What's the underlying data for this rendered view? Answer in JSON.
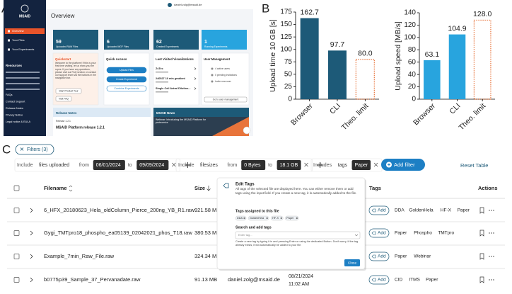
{
  "panel_labels": [
    "A",
    "B",
    "C"
  ],
  "dashboard": {
    "logo": "MSAID",
    "nav": [
      "Overview",
      "Your Files",
      "Your Experiments"
    ],
    "resources_title": "Resources",
    "resources": [
      "FAQs",
      "Contact Support",
      "Release Notes",
      "Privacy Notice",
      "Legal notice & EULA"
    ],
    "user": "daniel.zolg@msaid.de",
    "page_title": "Overview",
    "stats": [
      {
        "value": "59",
        "label": "Uploaded RAW Files"
      },
      {
        "value": "6",
        "label": "Uploaded MGF Files"
      },
      {
        "value": "62",
        "label": "Created Experiments"
      },
      {
        "value": "1",
        "label": "Running Experiments"
      }
    ],
    "quickstart": {
      "title": "Quickstart",
      "text": "Welcome to the platform! If this is your first time visiting, let us show you the ropes. If you have any questions, please visit our FAQ section or contact our support team via the buttons in the navigation bar.",
      "button": "Start Product Tour",
      "link": "Visit FAQ"
    },
    "quick_access": {
      "title": "Quick Access",
      "buttons": [
        "Upload Files",
        "Create Experiment",
        "Combine Experiments"
      ]
    },
    "last_visited": {
      "title": "Last Visited Visualizations",
      "items": [
        "ZsTec",
        "240527 10 min gradient",
        "Single Cell Astral Dilution..."
      ]
    },
    "user_management": {
      "title": "User Management",
      "items": [
        "4 active users",
        "0 pending invitations",
        "Invite new user"
      ],
      "link": "Go to user management"
    },
    "release_notes": {
      "title": "Release Notes",
      "version": "Release 1.2.1",
      "item": "MSAID Platform release 1.2.1"
    },
    "news": {
      "title": "MSAID News",
      "text": "Webinar: Introducing the MSAID Platform for proteomics"
    }
  },
  "chart_data": [
    {
      "type": "bar",
      "y_label": "Upload time 10 GB [s]",
      "categories": [
        "Browser",
        "CLI",
        "Theo. limit"
      ],
      "values": [
        162.7,
        97.7,
        80.0
      ],
      "value_labels": [
        "162.7",
        "97.7",
        "80.0"
      ],
      "colors": [
        "#1d5a78",
        "#1d5a78",
        "#e8743b"
      ],
      "dashed": [
        false,
        false,
        true
      ],
      "ylim": [
        0,
        175
      ],
      "yticks": [
        0,
        25,
        50,
        75,
        100,
        125,
        150,
        175
      ]
    },
    {
      "type": "bar",
      "y_label": "Upload speed [MB/s]",
      "categories": [
        "Browser",
        "CLI",
        "Theo. limit"
      ],
      "values": [
        63.1,
        104.9,
        128.0
      ],
      "value_labels": [
        "63.1",
        "104.9",
        "128.0"
      ],
      "colors": [
        "#28a4de",
        "#28a4de",
        "#e8743b"
      ],
      "dashed": [
        false,
        false,
        true
      ],
      "ylim": [
        0,
        140
      ],
      "yticks": [
        0,
        20,
        40,
        60,
        80,
        100,
        120,
        140
      ]
    }
  ],
  "table_ui": {
    "filter_chip": "Filters (3)",
    "filters": [
      [
        "Include",
        "files uploaded",
        "from",
        "06/01/2024",
        "to",
        "09/09/2024"
      ],
      [
        "Include",
        "filesizes",
        "from",
        "0 Bytes",
        "to",
        "18.1 GB"
      ],
      [
        "Includes",
        "tags",
        "Paper"
      ]
    ],
    "add_filter": "Add filter",
    "reset": "Reset Table",
    "columns": [
      "Filename",
      "Size",
      "Tags",
      "Actions"
    ],
    "add_tag": "Add",
    "rows": [
      {
        "filename": "6_HFX_20180623_Hela_oldColumn_Pierce_200ng_YB_R1.raw",
        "size": "921.58 MB",
        "tags": [
          "DDA",
          "GoldenHela",
          "HF-X",
          "Paper"
        ]
      },
      {
        "filename": "Gygi_TMTpro18_phospho_ea05139_02042021_phos_T18.raw",
        "size": "380.53 MB",
        "tags": [
          "Paper",
          "Phospho",
          "TMTpro"
        ]
      },
      {
        "filename": "Example_7min_Raw_File.raw",
        "size": "324.34 MB",
        "tags": [
          "Paper",
          "Webinar"
        ]
      },
      {
        "filename": "b0775p39_Sample_37_Pervanadate.raw",
        "size": "91.13 MB",
        "owner": "daniel.zolg@msaid.de",
        "date": "08/21/2024",
        "time": "11:02 AM",
        "tags": [
          "CID",
          "ITMS",
          "Paper"
        ]
      }
    ],
    "popup": {
      "title": "Edit Tags",
      "text": "All tags of the selected file are displayed here. You can either remove them or add tags using the input field. If you create a new tag, it is automatically added to the file.",
      "assigned_title": "Tags assigned to this file",
      "assigned": [
        "DDA",
        "GoldenHela",
        "HF-X",
        "Paper"
      ],
      "search_title": "Search and add tags",
      "placeholder": "Enter tag...",
      "hint": "Create a new tag by typing it in and pressing Enter or using the dedicated Button. Don't worry, if the tag already exists, it will automatically be added to your file.",
      "close": "Close"
    }
  }
}
